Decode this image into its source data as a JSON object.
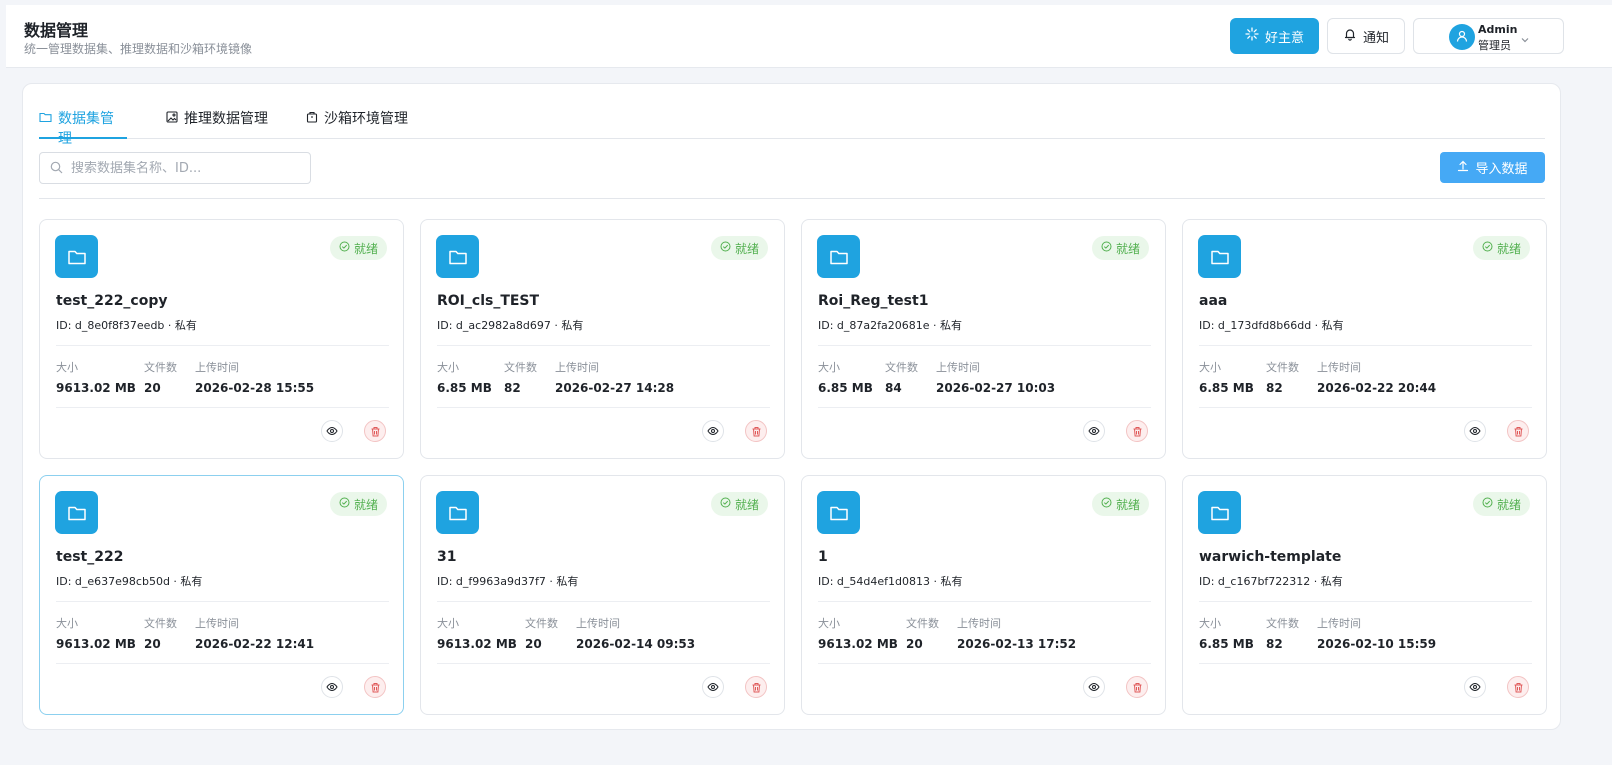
{
  "header": {
    "title": "数据管理",
    "subtitle": "统一管理数据集、推理数据和沙箱环境镜像",
    "idea_button": "好主意",
    "notify_button": "通知",
    "user_name": "Admin",
    "user_role": "管理员"
  },
  "tabs": [
    {
      "label": "数据集管理",
      "icon": "folder-icon",
      "active": true
    },
    {
      "label": "推理数据管理",
      "icon": "image-icon",
      "active": false
    },
    {
      "label": "沙箱环境管理",
      "icon": "package-icon",
      "active": false
    }
  ],
  "search": {
    "placeholder": "搜索数据集名称、ID..."
  },
  "import_button": "导入数据",
  "colors": {
    "accent": "#1fa3e0",
    "import_button": "#45a9f5",
    "status_green": "#52b04f",
    "delete_red": "#e05a5a"
  },
  "stat_labels": {
    "size": "大小",
    "files": "文件数",
    "uploaded": "上传时间"
  },
  "datasets": [
    {
      "name": "test_222_copy",
      "id": "ID: d_8e0f8f37eedb · 私有",
      "status": "就绪",
      "size": "9613.02 MB",
      "files": "20",
      "uploaded": "2026-02-28 15:55",
      "selected": false
    },
    {
      "name": "ROI_cls_TEST",
      "id": "ID: d_ac2982a8d697 · 私有",
      "status": "就绪",
      "size": "6.85 MB",
      "files": "82",
      "uploaded": "2026-02-27 14:28",
      "selected": false
    },
    {
      "name": "Roi_Reg_test1",
      "id": "ID: d_87a2fa20681e · 私有",
      "status": "就绪",
      "size": "6.85 MB",
      "files": "84",
      "uploaded": "2026-02-27 10:03",
      "selected": false
    },
    {
      "name": "aaa",
      "id": "ID: d_173dfd8b66dd · 私有",
      "status": "就绪",
      "size": "6.85 MB",
      "files": "82",
      "uploaded": "2026-02-22 20:44",
      "selected": false
    },
    {
      "name": "test_222",
      "id": "ID: d_e637e98cb50d · 私有",
      "status": "就绪",
      "size": "9613.02 MB",
      "files": "20",
      "uploaded": "2026-02-22 12:41",
      "selected": true
    },
    {
      "name": "31",
      "id": "ID: d_f9963a9d37f7 · 私有",
      "status": "就绪",
      "size": "9613.02 MB",
      "files": "20",
      "uploaded": "2026-02-14 09:53",
      "selected": false
    },
    {
      "name": "1",
      "id": "ID: d_54d4ef1d0813 · 私有",
      "status": "就绪",
      "size": "9613.02 MB",
      "files": "20",
      "uploaded": "2026-02-13 17:52",
      "selected": false
    },
    {
      "name": "warwich-template",
      "id": "ID: d_c167bf722312 · 私有",
      "status": "就绪",
      "size": "6.85 MB",
      "files": "82",
      "uploaded": "2026-02-10 15:59",
      "selected": false
    }
  ]
}
